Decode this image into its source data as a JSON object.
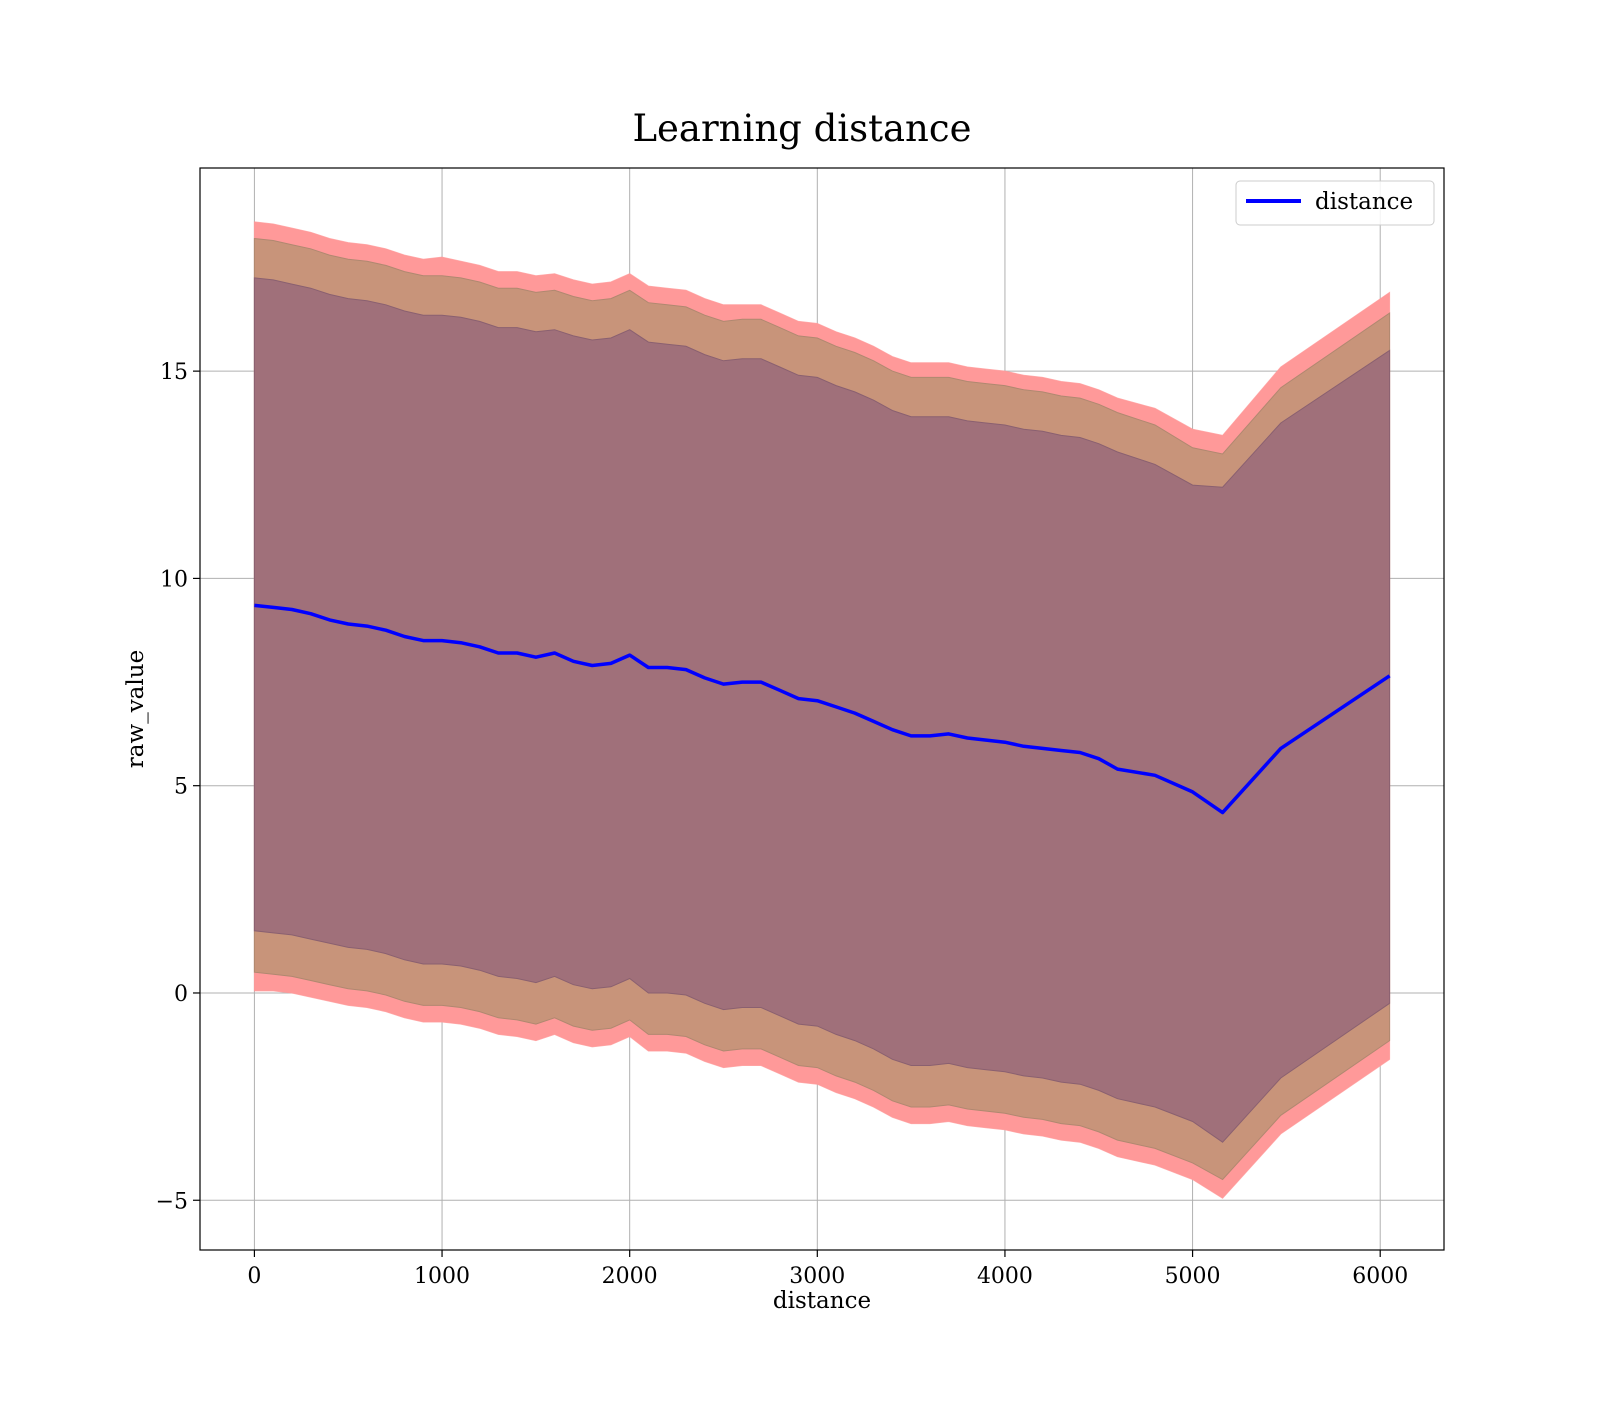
{
  "chart_data": {
    "type": "line",
    "title": "Learning distance",
    "xlabel": "distance",
    "ylabel": "raw_value",
    "xlim": [
      -290,
      6340
    ],
    "ylim": [
      -6.2,
      19.9
    ],
    "xticks": [
      0,
      1000,
      2000,
      3000,
      4000,
      5000,
      6000
    ],
    "yticks": [
      -5,
      0,
      5,
      10,
      15
    ],
    "ytick_labels": [
      "−5",
      "0",
      "5",
      "10",
      "15"
    ],
    "grid": true,
    "legend_position": "top-right",
    "colors": {
      "line": "#0000ff",
      "band_outer": "#ff9999",
      "band_middle": "#c8947a",
      "band_inner": "#a0707a"
    },
    "series": [
      {
        "name": "distance",
        "x": [
          0,
          100,
          200,
          300,
          400,
          500,
          600,
          700,
          800,
          900,
          1000,
          1100,
          1200,
          1300,
          1400,
          1500,
          1600,
          1700,
          1800,
          1900,
          2000,
          2100,
          2200,
          2300,
          2400,
          2500,
          2600,
          2700,
          2800,
          2900,
          3000,
          3100,
          3200,
          3300,
          3400,
          3500,
          3600,
          3700,
          3800,
          3900,
          4000,
          4100,
          4200,
          4300,
          4400,
          4500,
          4600,
          4800,
          5000,
          5160,
          5470,
          6050
        ],
        "values": [
          9.35,
          9.3,
          9.25,
          9.15,
          9.0,
          8.9,
          8.85,
          8.75,
          8.6,
          8.5,
          8.5,
          8.45,
          8.35,
          8.2,
          8.2,
          8.1,
          8.2,
          8.0,
          7.9,
          7.95,
          8.15,
          7.85,
          7.85,
          7.8,
          7.6,
          7.45,
          7.5,
          7.5,
          7.3,
          7.1,
          7.05,
          6.9,
          6.75,
          6.55,
          6.35,
          6.2,
          6.2,
          6.25,
          6.15,
          6.1,
          6.05,
          5.95,
          5.9,
          5.85,
          5.8,
          5.65,
          5.4,
          5.25,
          4.85,
          4.35,
          5.9,
          7.65
        ],
        "band_outer": {
          "upper": [
            18.6,
            18.55,
            18.45,
            18.35,
            18.2,
            18.1,
            18.05,
            17.95,
            17.8,
            17.7,
            17.75,
            17.65,
            17.55,
            17.4,
            17.4,
            17.3,
            17.35,
            17.2,
            17.1,
            17.15,
            17.35,
            17.05,
            17.0,
            16.95,
            16.75,
            16.6,
            16.6,
            16.6,
            16.4,
            16.2,
            16.15,
            15.95,
            15.8,
            15.6,
            15.35,
            15.2,
            15.2,
            15.2,
            15.1,
            15.05,
            15.0,
            14.9,
            14.85,
            14.75,
            14.7,
            14.55,
            14.35,
            14.1,
            13.6,
            13.45,
            15.1,
            16.9
          ],
          "lower": [
            0.05,
            0.05,
            0.0,
            -0.1,
            -0.2,
            -0.3,
            -0.35,
            -0.45,
            -0.6,
            -0.7,
            -0.7,
            -0.75,
            -0.85,
            -1.0,
            -1.05,
            -1.15,
            -1.0,
            -1.2,
            -1.3,
            -1.25,
            -1.05,
            -1.4,
            -1.4,
            -1.45,
            -1.65,
            -1.8,
            -1.75,
            -1.75,
            -1.95,
            -2.15,
            -2.2,
            -2.4,
            -2.55,
            -2.75,
            -3.0,
            -3.15,
            -3.15,
            -3.1,
            -3.2,
            -3.25,
            -3.3,
            -3.4,
            -3.45,
            -3.55,
            -3.6,
            -3.75,
            -3.95,
            -4.15,
            -4.5,
            -4.95,
            -3.4,
            -1.6
          ]
        },
        "band_middle": {
          "upper": [
            18.2,
            18.15,
            18.05,
            17.95,
            17.8,
            17.7,
            17.65,
            17.55,
            17.4,
            17.3,
            17.3,
            17.25,
            17.15,
            17.0,
            17.0,
            16.9,
            16.95,
            16.8,
            16.7,
            16.75,
            16.95,
            16.65,
            16.6,
            16.55,
            16.35,
            16.2,
            16.25,
            16.25,
            16.05,
            15.85,
            15.8,
            15.6,
            15.45,
            15.25,
            15.0,
            14.85,
            14.85,
            14.85,
            14.75,
            14.7,
            14.65,
            14.55,
            14.5,
            14.4,
            14.35,
            14.2,
            14.0,
            13.7,
            13.15,
            13.0,
            14.6,
            16.4
          ],
          "lower": [
            0.5,
            0.45,
            0.4,
            0.3,
            0.2,
            0.1,
            0.05,
            -0.05,
            -0.2,
            -0.3,
            -0.3,
            -0.35,
            -0.45,
            -0.6,
            -0.65,
            -0.75,
            -0.6,
            -0.8,
            -0.9,
            -0.85,
            -0.65,
            -1.0,
            -1.0,
            -1.05,
            -1.25,
            -1.4,
            -1.35,
            -1.35,
            -1.55,
            -1.75,
            -1.8,
            -2.0,
            -2.15,
            -2.35,
            -2.6,
            -2.75,
            -2.75,
            -2.7,
            -2.8,
            -2.85,
            -2.9,
            -3.0,
            -3.05,
            -3.15,
            -3.2,
            -3.35,
            -3.55,
            -3.75,
            -4.1,
            -4.5,
            -2.95,
            -1.15
          ]
        },
        "band_inner": {
          "upper": [
            17.25,
            17.2,
            17.1,
            17.0,
            16.85,
            16.75,
            16.7,
            16.6,
            16.45,
            16.35,
            16.35,
            16.3,
            16.2,
            16.05,
            16.05,
            15.95,
            16.0,
            15.85,
            15.75,
            15.8,
            16.0,
            15.7,
            15.65,
            15.6,
            15.4,
            15.25,
            15.3,
            15.3,
            15.1,
            14.9,
            14.85,
            14.65,
            14.5,
            14.3,
            14.05,
            13.9,
            13.9,
            13.9,
            13.8,
            13.75,
            13.7,
            13.6,
            13.55,
            13.45,
            13.4,
            13.25,
            13.05,
            12.75,
            12.25,
            12.2,
            13.75,
            15.5
          ],
          "lower": [
            1.5,
            1.45,
            1.4,
            1.3,
            1.2,
            1.1,
            1.05,
            0.95,
            0.8,
            0.7,
            0.7,
            0.65,
            0.55,
            0.4,
            0.35,
            0.25,
            0.4,
            0.2,
            0.1,
            0.15,
            0.35,
            0.0,
            0.0,
            -0.05,
            -0.25,
            -0.4,
            -0.35,
            -0.35,
            -0.55,
            -0.75,
            -0.8,
            -1.0,
            -1.15,
            -1.35,
            -1.6,
            -1.75,
            -1.75,
            -1.7,
            -1.8,
            -1.85,
            -1.9,
            -2.0,
            -2.05,
            -2.15,
            -2.2,
            -2.35,
            -2.55,
            -2.75,
            -3.1,
            -3.6,
            -2.05,
            -0.25
          ]
        }
      }
    ]
  }
}
